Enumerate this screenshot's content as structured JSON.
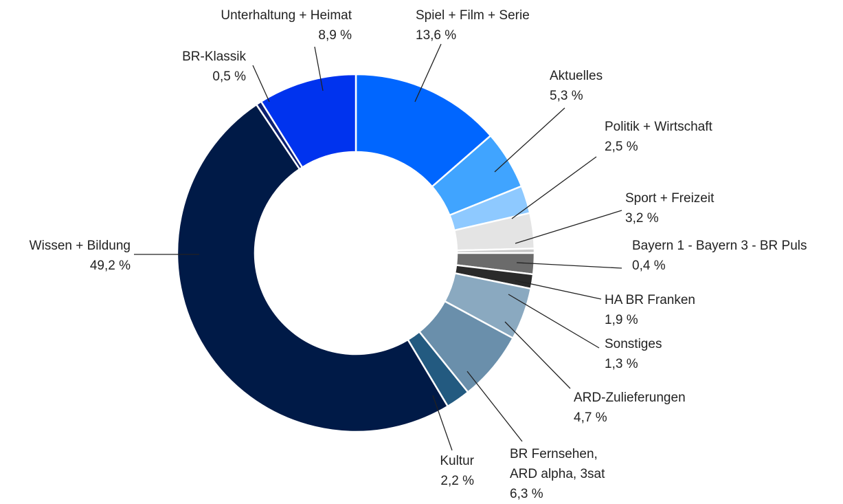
{
  "chart_data": {
    "type": "donut",
    "categories": [
      "Spiel + Film + Serie",
      "Aktuelles",
      "Politik + Wirtschaft",
      "Sport + Freizeit",
      "Bayern 1 - Bayern 3 -  BR Puls",
      "HA BR Franken",
      "Sonstiges",
      "ARD-Zulieferungen",
      "BR Fernsehen, ARD alpha, 3sat",
      "Kultur",
      "Wissen + Bildung",
      "BR-Klassik",
      "Unterhaltung + Heimat"
    ],
    "values": [
      13.6,
      5.3,
      2.5,
      3.2,
      0.4,
      1.9,
      1.3,
      4.7,
      6.3,
      2.2,
      49.2,
      0.5,
      8.9
    ],
    "value_labels": [
      "13,6 %",
      "5,3 %",
      "2,5 %",
      "3,2 %",
      "0,4 %",
      "1,9 %",
      "1,3 %",
      "4,7 %",
      "6,3 %",
      "2,2 %",
      "49,2 %",
      "0,5 %",
      "8,9 %"
    ],
    "colors": [
      "#0066ff",
      "#40a4ff",
      "#8ec9ff",
      "#e4e4e4",
      "#c8c8c8",
      "#6b6b6b",
      "#2a2a2a",
      "#8aa9c0",
      "#6a8fab",
      "#235a80",
      "#001a47",
      "#0c2070",
      "#0033ee"
    ]
  }
}
